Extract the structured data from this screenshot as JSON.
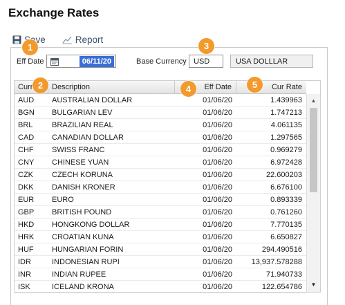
{
  "page": {
    "title": "Exchange Rates"
  },
  "toolbar": {
    "save_label": "Save",
    "report_label": "Report"
  },
  "form": {
    "eff_date_label": "Eff Date",
    "eff_date_value": "06/11/20",
    "base_currency_label": "Base Currency",
    "base_currency_value": "USD",
    "base_currency_description": "USA DOLLLAR"
  },
  "table": {
    "headers": [
      "Curr",
      "Description",
      "Eff Date",
      "Cur Rate"
    ],
    "rows": [
      [
        "AUD",
        "AUSTRALIAN DOLLAR",
        "01/06/20",
        "1.439963"
      ],
      [
        "BGN",
        "BULGARIAN LEV",
        "01/06/20",
        "1.747213"
      ],
      [
        "BRL",
        "BRAZILIAN REAL",
        "01/06/20",
        "4.061135"
      ],
      [
        "CAD",
        "CANADIAN DOLLAR",
        "01/06/20",
        "1.297565"
      ],
      [
        "CHF",
        "SWISS FRANC",
        "01/06/20",
        "0.969279"
      ],
      [
        "CNY",
        "CHINESE YUAN",
        "01/06/20",
        "6.972428"
      ],
      [
        "CZK",
        "CZECH KORUNA",
        "01/06/20",
        "22.600203"
      ],
      [
        "DKK",
        "DANISH KRONER",
        "01/06/20",
        "6.676100"
      ],
      [
        "EUR",
        "EURO",
        "01/06/20",
        "0.893339"
      ],
      [
        "GBP",
        "BRITISH POUND",
        "01/06/20",
        "0.761260"
      ],
      [
        "HKD",
        "HONGKONG DOLLAR",
        "01/06/20",
        "7.770135"
      ],
      [
        "HRK",
        "CROATIAN KUNA",
        "01/06/20",
        "6.650827"
      ],
      [
        "HUF",
        "HUNGARIAN FORIN",
        "01/06/20",
        "294.490516"
      ],
      [
        "IDR",
        "INDONESIAN RUPI",
        "01/06/20",
        "13,937.578288"
      ],
      [
        "INR",
        "INDIAN RUPEE",
        "01/06/20",
        "71.940733"
      ],
      [
        "ISK",
        "ICELAND KRONA",
        "01/06/20",
        "122.654786"
      ]
    ]
  },
  "markers": [
    "1",
    "2",
    "3",
    "4",
    "5"
  ],
  "colors": {
    "marker": "#f29a2e",
    "date_highlight": "#3a6fd8",
    "toolbar_text": "#3c4f66"
  }
}
